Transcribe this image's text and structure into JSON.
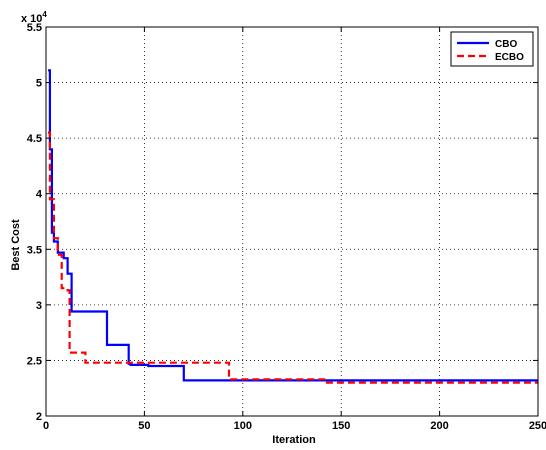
{
  "chart_data": {
    "type": "line",
    "title": "",
    "xlabel": "Iteration",
    "ylabel": "Best Cost",
    "y_multiplier_label": "x 10",
    "y_multiplier_exponent": "4",
    "xlim": [
      0,
      250
    ],
    "ylim": [
      2,
      5.5
    ],
    "xticks": [
      0,
      50,
      100,
      150,
      200,
      250
    ],
    "xtick_labels": [
      "0",
      "50",
      "100",
      "150",
      "200",
      "250"
    ],
    "yticks": [
      2,
      2.5,
      3,
      3.5,
      4,
      4.5,
      5,
      5.5
    ],
    "ytick_labels": [
      "2",
      "2.5",
      "3",
      "3.5",
      "4",
      "4.5",
      "5",
      "5.5"
    ],
    "grid": true,
    "grid_style": "dotted",
    "legend_position": "top-right",
    "series": [
      {
        "name": "CBO",
        "color": "#0000ff",
        "style": "solid",
        "x": [
          1,
          2,
          2,
          3,
          3,
          4,
          4,
          6,
          6,
          9,
          9,
          11,
          11,
          13,
          13,
          31,
          31,
          42,
          42,
          43,
          43,
          52,
          52,
          70,
          70,
          250
        ],
        "y": [
          5.11,
          5.11,
          4.4,
          4.4,
          3.65,
          3.65,
          3.57,
          3.57,
          3.47,
          3.47,
          3.42,
          3.42,
          3.28,
          3.28,
          2.94,
          2.94,
          2.64,
          2.64,
          2.47,
          2.47,
          2.46,
          2.46,
          2.45,
          2.45,
          2.32,
          2.32
        ]
      },
      {
        "name": "ECBO",
        "color": "#ff0000",
        "style": "dashed",
        "x": [
          1,
          2,
          2,
          4,
          4,
          6,
          6,
          8,
          8,
          11,
          11,
          12,
          12,
          20,
          20,
          28,
          28,
          93,
          93,
          142,
          142,
          250
        ],
        "y": [
          4.55,
          4.55,
          3.95,
          3.95,
          3.6,
          3.6,
          3.45,
          3.45,
          3.15,
          3.15,
          3.13,
          3.13,
          2.57,
          2.57,
          2.48,
          2.48,
          2.48,
          2.48,
          2.33,
          2.33,
          2.3,
          2.3
        ]
      }
    ]
  }
}
